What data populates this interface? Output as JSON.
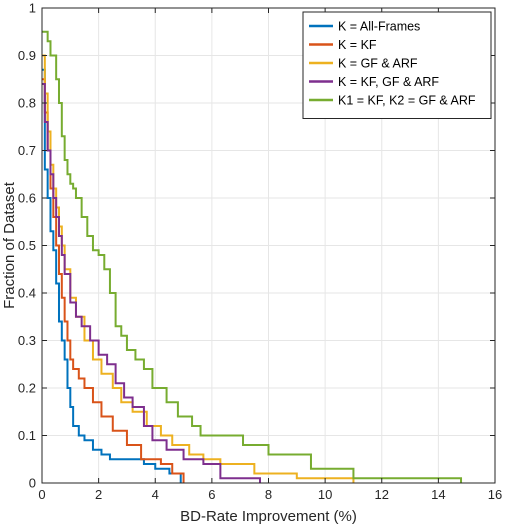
{
  "chart_data": {
    "type": "line",
    "title": "",
    "xlabel": "BD-Rate Improvement (%)",
    "ylabel": "Fraction of Dataset",
    "xlim": [
      0,
      16
    ],
    "ylim": [
      0,
      1
    ],
    "xticks": [
      0,
      2,
      4,
      6,
      8,
      10,
      12,
      14,
      16
    ],
    "yticks": [
      0,
      0.1,
      0.2,
      0.3,
      0.4,
      0.5,
      0.6,
      0.7,
      0.8,
      0.9,
      1
    ],
    "xtick_labels": [
      "0",
      "2",
      "4",
      "6",
      "8",
      "10",
      "12",
      "14",
      "16"
    ],
    "ytick_labels": [
      "0",
      "0.1",
      "0.2",
      "0.3",
      "0.4",
      "0.5",
      "0.6",
      "0.7",
      "0.8",
      "0.9",
      "1"
    ],
    "grid": true,
    "legend_position": "top-right",
    "line_style": "step",
    "series": [
      {
        "name": "K = All-Frames",
        "color": "#0072BD",
        "x": [
          0,
          0.1,
          0.2,
          0.3,
          0.4,
          0.5,
          0.6,
          0.7,
          0.8,
          0.9,
          1.0,
          1.1,
          1.3,
          1.5,
          1.8,
          2.1,
          2.4,
          3.0,
          3.6,
          4.0,
          4.5,
          4.9
        ],
        "y": [
          0.87,
          0.66,
          0.6,
          0.53,
          0.49,
          0.42,
          0.34,
          0.3,
          0.26,
          0.2,
          0.16,
          0.12,
          0.1,
          0.09,
          0.07,
          0.06,
          0.05,
          0.05,
          0.04,
          0.03,
          0.02,
          0
        ]
      },
      {
        "name": "K = KF",
        "color": "#D95319",
        "x": [
          0,
          0.1,
          0.2,
          0.3,
          0.4,
          0.5,
          0.6,
          0.7,
          0.8,
          0.9,
          1.0,
          1.1,
          1.3,
          1.5,
          1.8,
          2.1,
          2.5,
          3.0,
          3.5,
          4.2,
          4.6,
          5.0
        ],
        "y": [
          0.85,
          0.78,
          0.7,
          0.62,
          0.56,
          0.5,
          0.44,
          0.39,
          0.34,
          0.3,
          0.26,
          0.24,
          0.22,
          0.2,
          0.17,
          0.14,
          0.11,
          0.08,
          0.05,
          0.04,
          0.02,
          0
        ]
      },
      {
        "name": "K = GF & ARF",
        "color": "#EDB120",
        "x": [
          0,
          0.1,
          0.2,
          0.3,
          0.4,
          0.5,
          0.6,
          0.7,
          0.8,
          1.0,
          1.2,
          1.5,
          1.8,
          2.1,
          2.5,
          2.8,
          3.2,
          3.7,
          4.2,
          4.6,
          5.2,
          5.7,
          6.3,
          7.5,
          9.0,
          11.0
        ],
        "y": [
          0.9,
          0.82,
          0.74,
          0.67,
          0.62,
          0.58,
          0.54,
          0.5,
          0.45,
          0.39,
          0.35,
          0.3,
          0.26,
          0.23,
          0.2,
          0.17,
          0.15,
          0.12,
          0.1,
          0.08,
          0.06,
          0.05,
          0.04,
          0.02,
          0.01,
          0
        ]
      },
      {
        "name": "K = KF, GF & ARF",
        "color": "#7E2F8E",
        "x": [
          0,
          0.1,
          0.2,
          0.3,
          0.4,
          0.5,
          0.6,
          0.7,
          0.8,
          1.0,
          1.2,
          1.4,
          1.7,
          2.0,
          2.3,
          2.6,
          2.9,
          3.2,
          3.6,
          3.9,
          4.4,
          5.0,
          5.7,
          6.3,
          7.7
        ],
        "y": [
          0.84,
          0.76,
          0.7,
          0.65,
          0.6,
          0.56,
          0.52,
          0.48,
          0.44,
          0.38,
          0.35,
          0.33,
          0.3,
          0.27,
          0.25,
          0.21,
          0.18,
          0.16,
          0.12,
          0.09,
          0.07,
          0.05,
          0.04,
          0.01,
          0
        ]
      },
      {
        "name": "K1 = KF, K2 = GF & ARF",
        "color": "#77AC30",
        "x": [
          0,
          0.2,
          0.3,
          0.5,
          0.6,
          0.7,
          0.8,
          0.9,
          1.0,
          1.1,
          1.2,
          1.4,
          1.6,
          1.8,
          2.0,
          2.2,
          2.4,
          2.6,
          2.8,
          3.0,
          3.3,
          3.6,
          3.9,
          4.4,
          4.8,
          5.3,
          5.6,
          6.5,
          7.1,
          8.0,
          9.5,
          11.0,
          14.8
        ],
        "y": [
          0.95,
          0.93,
          0.9,
          0.85,
          0.8,
          0.73,
          0.68,
          0.65,
          0.63,
          0.62,
          0.6,
          0.56,
          0.52,
          0.49,
          0.48,
          0.45,
          0.4,
          0.33,
          0.31,
          0.28,
          0.26,
          0.24,
          0.2,
          0.17,
          0.14,
          0.12,
          0.1,
          0.1,
          0.08,
          0.06,
          0.03,
          0.01,
          0
        ]
      }
    ]
  }
}
